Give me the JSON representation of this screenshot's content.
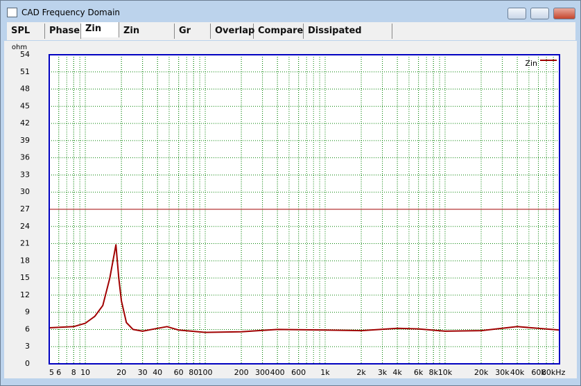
{
  "window": {
    "title": "CAD Frequency Domain"
  },
  "tabs": [
    "SPL",
    "Phase",
    "Zin",
    "Zin Phase",
    "Gr Del",
    "Overlap",
    "Compare",
    "Dissipated Power"
  ],
  "active_tab": 2,
  "chart_data": {
    "type": "line",
    "y_label": "ohm",
    "xscale": "log",
    "xlim": [
      5,
      90000
    ],
    "ylim": [
      0,
      54
    ],
    "yticks": [
      0,
      3,
      6,
      9,
      12,
      15,
      18,
      21,
      24,
      27,
      30,
      33,
      36,
      39,
      42,
      45,
      48,
      51,
      54
    ],
    "xticks": [
      5,
      6,
      8,
      10,
      20,
      30,
      40,
      60,
      80,
      100,
      200,
      300,
      400,
      600,
      {
        "value": 1000,
        "label": "1k"
      },
      {
        "value": 2000,
        "label": "2k"
      },
      {
        "value": 3000,
        "label": "3k"
      },
      {
        "value": 4000,
        "label": "4k"
      },
      {
        "value": 6000,
        "label": "6k"
      },
      {
        "value": 8000,
        "label": "8k"
      },
      {
        "value": 10000,
        "label": "10k"
      },
      {
        "value": 20000,
        "label": "20k"
      },
      {
        "value": 30000,
        "label": "30k"
      },
      {
        "value": 40000,
        "label": "40k"
      },
      {
        "value": 60000,
        "label": "60k"
      },
      {
        "value": 80000,
        "label": "80kHz"
      }
    ],
    "grid": true,
    "grid_color": "#008000",
    "legend": "top-right",
    "reference_line": {
      "value": 27,
      "color": "#a00000"
    },
    "x": [
      5,
      8,
      10,
      12,
      14,
      16,
      18,
      19,
      20,
      22,
      25,
      30,
      40,
      48,
      60,
      100,
      200,
      400,
      1000,
      2000,
      4000,
      6000,
      10000,
      20000,
      40000,
      90000
    ],
    "series": [
      {
        "name": "Zin",
        "color": "#a00000",
        "values": [
          6.3,
          6.5,
          7.1,
          8.3,
          10.2,
          15,
          20.8,
          15,
          11,
          7.2,
          6.0,
          5.7,
          6.2,
          6.5,
          5.9,
          5.5,
          5.6,
          6.0,
          5.9,
          5.8,
          6.2,
          6.1,
          5.7,
          5.8,
          6.5,
          5.9
        ]
      }
    ]
  }
}
